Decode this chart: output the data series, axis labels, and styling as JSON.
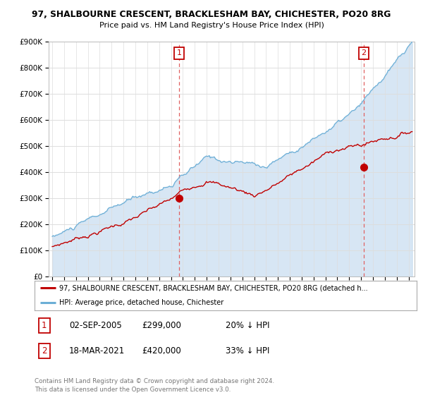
{
  "title": "97, SHALBOURNE CRESCENT, BRACKLESHAM BAY, CHICHESTER, PO20 8RG",
  "subtitle": "Price paid vs. HM Land Registry's House Price Index (HPI)",
  "ylim": [
    0,
    900000
  ],
  "xlim_start": 1994.7,
  "xlim_end": 2025.5,
  "hpi_color": "#6baed6",
  "hpi_fill_color": "#c6dcf0",
  "price_color": "#c00000",
  "vline_color": "#e06060",
  "point1_date": 2005.67,
  "point1_price": 299000,
  "point1_label": "1",
  "point2_date": 2021.21,
  "point2_price": 420000,
  "point2_label": "2",
  "legend_line1": "97, SHALBOURNE CRESCENT, BRACKLESHAM BAY, CHICHESTER, PO20 8RG (detached h...",
  "legend_line2": "HPI: Average price, detached house, Chichester",
  "table_row1": [
    "1",
    "02-SEP-2005",
    "£299,000",
    "20% ↓ HPI"
  ],
  "table_row2": [
    "2",
    "18-MAR-2021",
    "£420,000",
    "33% ↓ HPI"
  ],
  "footnote": "Contains HM Land Registry data © Crown copyright and database right 2024.\nThis data is licensed under the Open Government Licence v3.0.",
  "background_color": "#ffffff",
  "grid_color": "#dddddd",
  "hpi_seed": 10,
  "price_seed": 7
}
